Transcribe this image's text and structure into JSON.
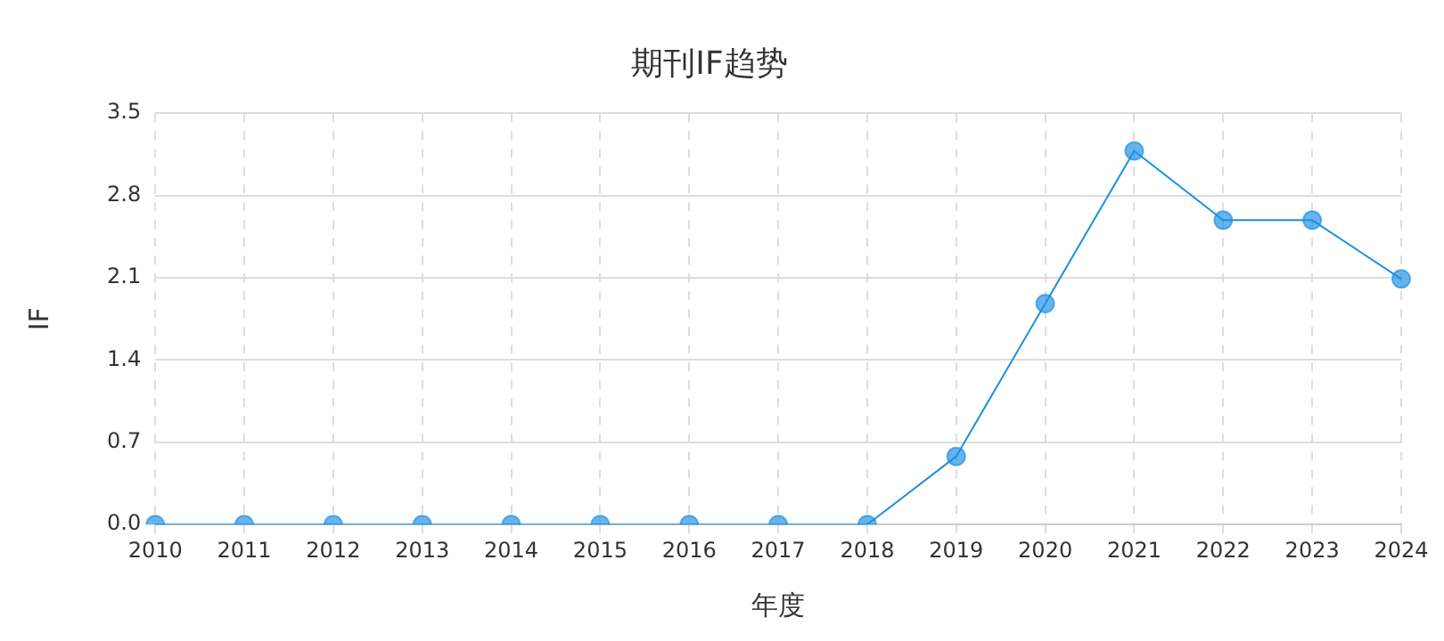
{
  "chart_data": {
    "type": "line",
    "title": "期刊IF趋势",
    "xlabel": "年度",
    "ylabel": "IF",
    "categories": [
      "2010",
      "2011",
      "2012",
      "2013",
      "2014",
      "2015",
      "2016",
      "2017",
      "2018",
      "2019",
      "2020",
      "2021",
      "2022",
      "2023",
      "2024"
    ],
    "series": [
      {
        "color": "#1a8fe3",
        "values": [
          0,
          0,
          0,
          0,
          0,
          0,
          0,
          0,
          0,
          0.58,
          1.88,
          3.18,
          2.59,
          2.59,
          2.09
        ]
      }
    ],
    "ylim": [
      0,
      3.5
    ],
    "yticks": [
      {
        "value": 0,
        "label": "0.0"
      },
      0.7,
      1.4,
      2.1,
      2.8,
      3.5
    ],
    "grid": true,
    "legend": false,
    "marker": "circle",
    "line_style": "solid"
  }
}
